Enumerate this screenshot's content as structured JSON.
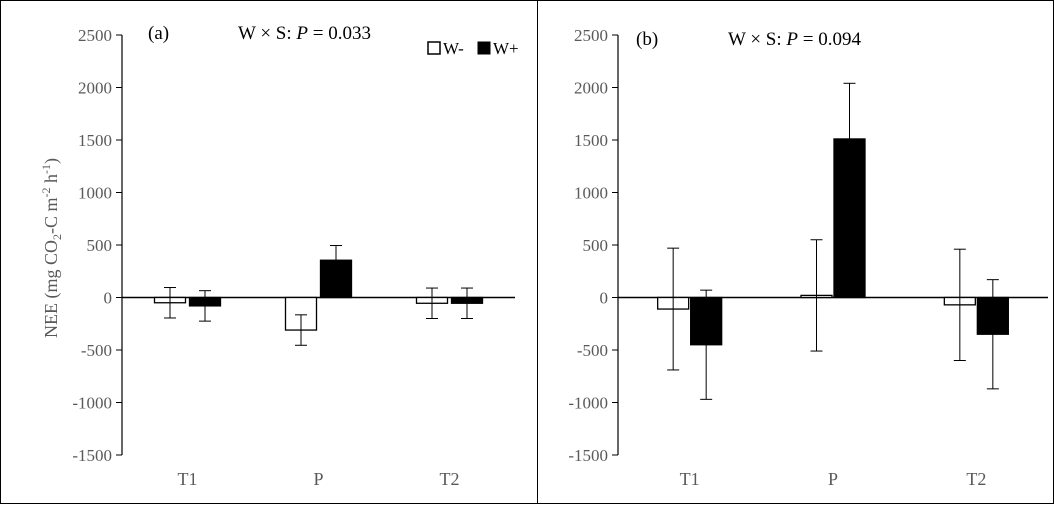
{
  "chart_data": [
    {
      "type": "bar",
      "panel_label": "(a)",
      "annotation": {
        "prefix": "W × S: ",
        "p_symbol": "P",
        "suffix": " = 0.033"
      },
      "ylabel": "NEE (mg CO2-C m-2 h-1)",
      "ylabel_parts": {
        "main": "NEE (mg CO",
        "sub": "2",
        "mid": "-C m",
        "sup1": "-2",
        "mid2": " h",
        "sup2": "-1",
        "end": ")"
      },
      "ylim": [
        -1500,
        2500
      ],
      "yticks": [
        "2500",
        "2000",
        "1500",
        "1000",
        "500",
        "0",
        "-500",
        "-1000",
        "-1500"
      ],
      "categories": [
        "T1",
        "P",
        "T2"
      ],
      "legend": {
        "placement": "top-right",
        "entries": [
          "W-",
          "W+"
        ]
      },
      "series": [
        {
          "name": "W-",
          "color": "#ffffff",
          "values": [
            -50,
            -310,
            -55
          ],
          "errors": [
            145,
            145,
            145
          ]
        },
        {
          "name": "W+",
          "color": "#000000",
          "values": [
            -80,
            355,
            -55
          ],
          "errors": [
            145,
            140,
            145
          ]
        }
      ]
    },
    {
      "type": "bar",
      "panel_label": "(b)",
      "annotation": {
        "prefix": "W × S: ",
        "p_symbol": "P",
        "suffix": " = 0.094"
      },
      "ylim": [
        -1500,
        2500
      ],
      "yticks": [
        "2500",
        "2000",
        "1500",
        "1000",
        "500",
        "0",
        "-500",
        "-1000",
        "-1500"
      ],
      "categories": [
        "T1",
        "P",
        "T2"
      ],
      "series": [
        {
          "name": "W-",
          "color": "#ffffff",
          "values": [
            -110,
            20,
            -70
          ],
          "errors": [
            580,
            530,
            530
          ]
        },
        {
          "name": "W+",
          "color": "#000000",
          "values": [
            -450,
            1510,
            -350
          ],
          "errors": [
            520,
            530,
            520
          ]
        }
      ]
    }
  ]
}
